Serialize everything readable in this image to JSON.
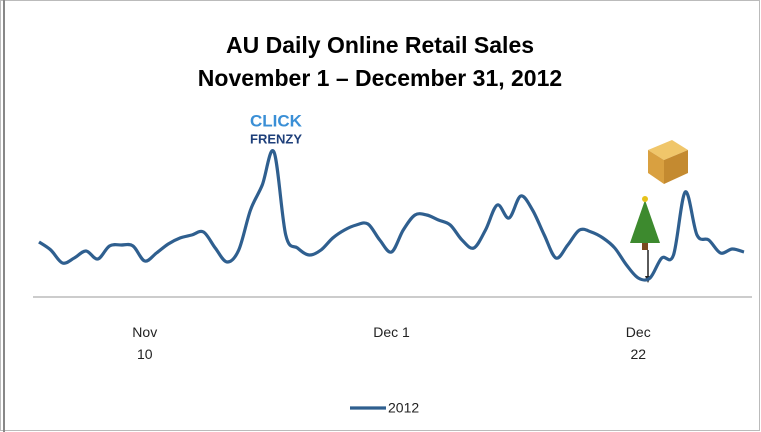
{
  "chart_data": {
    "type": "line",
    "title": "AU Daily Online Retail Sales",
    "subtitle": "November 1 – December 31, 2012",
    "annotations": [
      "CLICK",
      "FRENZY"
    ],
    "categories": [
      null,
      null,
      null,
      null,
      null,
      null,
      null,
      null,
      null,
      "Nov 10",
      null,
      null,
      null,
      null,
      null,
      null,
      null,
      null,
      null,
      null,
      null,
      null,
      null,
      null,
      null,
      null,
      null,
      null,
      null,
      null,
      "Dec 1",
      null,
      null,
      null,
      null,
      null,
      null,
      null,
      null,
      null,
      null,
      null,
      null,
      null,
      null,
      null,
      null,
      null,
      null,
      null,
      null,
      "Dec 22",
      null,
      null,
      null,
      null,
      null,
      null,
      null,
      null,
      null
    ],
    "series": [
      {
        "name": "2012",
        "color": "#2f5f8f",
        "values": [
          55,
          47,
          34,
          39,
          46,
          38,
          51,
          52,
          51,
          36,
          44,
          53,
          59,
          62,
          65,
          49,
          35,
          47,
          87,
          112,
          145,
          62,
          49,
          42,
          47,
          59,
          67,
          72,
          73,
          57,
          45,
          67,
          82,
          82,
          77,
          72,
          57,
          49,
          67,
          92,
          79,
          101,
          87,
          62,
          39,
          52,
          67,
          65,
          59,
          49,
          32,
          19,
          19,
          39,
          42,
          105,
          62,
          57,
          44,
          48,
          45
        ]
      }
    ],
    "ylim": [
      0,
      200
    ],
    "legend": "bottom"
  }
}
